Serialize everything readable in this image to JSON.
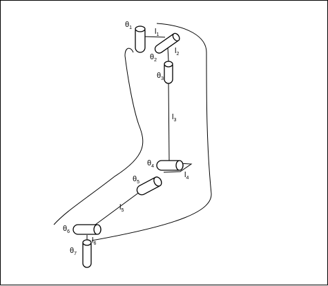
{
  "joints": [
    {
      "symbol": "θ",
      "index": "1"
    },
    {
      "symbol": "θ",
      "index": "2"
    },
    {
      "symbol": "θ",
      "index": "3"
    },
    {
      "symbol": "θ",
      "index": "4"
    },
    {
      "symbol": "θ",
      "index": "5"
    },
    {
      "symbol": "θ",
      "index": "6"
    },
    {
      "symbol": "θ",
      "index": "7"
    }
  ],
  "links": [
    {
      "symbol": "l",
      "index": "1"
    },
    {
      "symbol": "l",
      "index": "2"
    },
    {
      "symbol": "l",
      "index": "3"
    },
    {
      "symbol": "l",
      "index": "4"
    },
    {
      "symbol": "l",
      "index": "5"
    },
    {
      "symbol": "l",
      "index": "6"
    }
  ]
}
